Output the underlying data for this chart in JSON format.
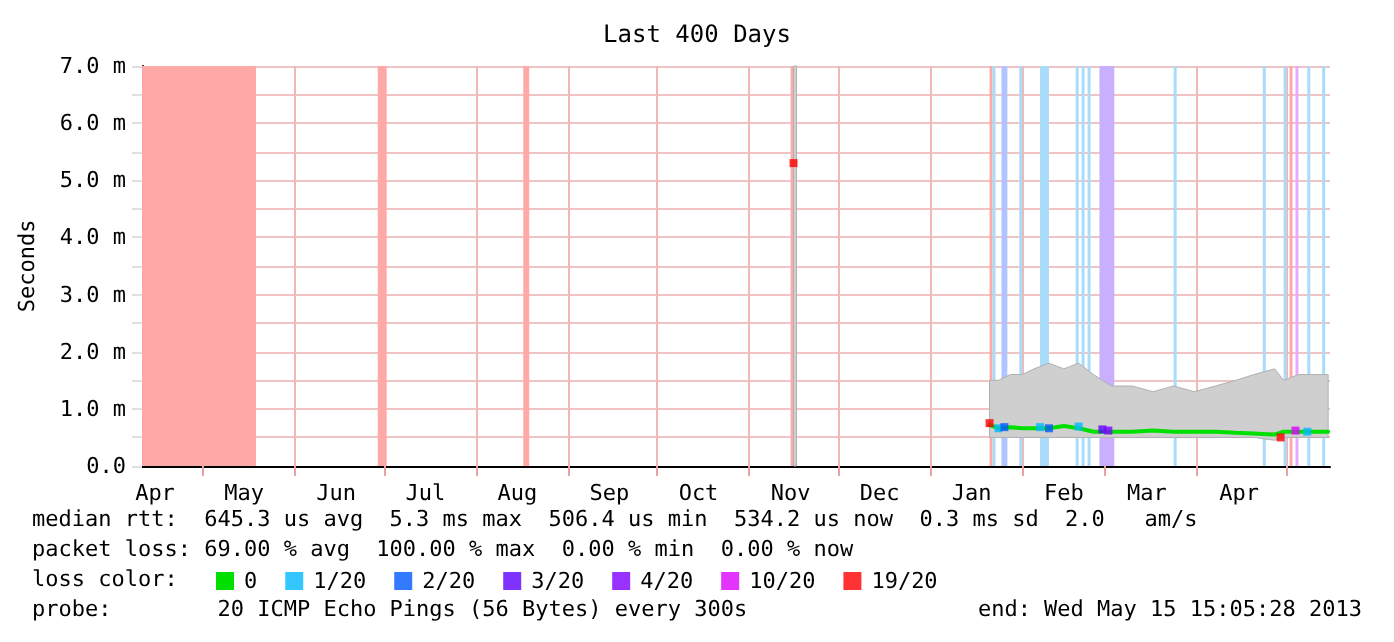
{
  "chart_data": {
    "type": "line",
    "title": "Last 400 Days",
    "ylabel": "Seconds",
    "legend_title": "loss color:",
    "xlim": [
      "2012-04-10T15:05",
      "2013-05-15T15:05"
    ],
    "xticks": [
      {
        "value": "2012-04-15",
        "label": "Apr"
      },
      {
        "value": "2012-05-01",
        "label": null
      },
      {
        "value": "2012-05-15",
        "label": "May"
      },
      {
        "value": "2012-06-01",
        "label": null
      },
      {
        "value": "2012-06-15",
        "label": "Jun"
      },
      {
        "value": "2012-07-01",
        "label": null
      },
      {
        "value": "2012-07-15",
        "label": "Jul"
      },
      {
        "value": "2012-08-01",
        "label": null
      },
      {
        "value": "2012-08-15",
        "label": "Aug"
      },
      {
        "value": "2012-09-01",
        "label": null
      },
      {
        "value": "2012-09-15",
        "label": "Sep"
      },
      {
        "value": "2012-10-01",
        "label": null
      },
      {
        "value": "2012-10-15",
        "label": "Oct"
      },
      {
        "value": "2012-11-01",
        "label": null
      },
      {
        "value": "2012-11-15",
        "label": "Nov"
      },
      {
        "value": "2012-12-01",
        "label": null
      },
      {
        "value": "2012-12-15",
        "label": "Dec"
      },
      {
        "value": "2013-01-01",
        "label": null
      },
      {
        "value": "2013-01-15",
        "label": "Jan"
      },
      {
        "value": "2013-02-01",
        "label": null
      },
      {
        "value": "2013-02-15",
        "label": "Feb"
      },
      {
        "value": "2013-03-01",
        "label": null
      },
      {
        "value": "2013-03-15",
        "label": "Mar"
      },
      {
        "value": "2013-04-01",
        "label": null
      },
      {
        "value": "2013-04-15",
        "label": "Apr"
      },
      {
        "value": "2013-05-01",
        "label": null
      }
    ],
    "ylim": [
      0,
      7
    ],
    "yticks": [
      {
        "value": 0,
        "label": "0.0"
      },
      {
        "value": 0.5,
        "label": null
      },
      {
        "value": 1,
        "label": "1.0 m"
      },
      {
        "value": 1.5,
        "label": null
      },
      {
        "value": 2,
        "label": "2.0 m"
      },
      {
        "value": 2.5,
        "label": null
      },
      {
        "value": 3,
        "label": "3.0 m"
      },
      {
        "value": 3.5,
        "label": null
      },
      {
        "value": 4,
        "label": "4.0 m"
      },
      {
        "value": 4.5,
        "label": null
      },
      {
        "value": 5,
        "label": "5.0 m"
      },
      {
        "value": 5.5,
        "label": null
      },
      {
        "value": 6,
        "label": "6.0 m"
      },
      {
        "value": 6.5,
        "label": null
      },
      {
        "value": 7,
        "label": "7.0 m"
      }
    ],
    "grid": true,
    "legend": "bottom",
    "line_style": "solid",
    "series": [
      {
        "name": "0",
        "color": "#00e000",
        "x": [
          "2012-11-16",
          "2012-11-17",
          "2012-11-18",
          "2013-01-21",
          "2013-01-24",
          "2013-01-28",
          "2013-02-01",
          "2013-02-05",
          "2013-02-10",
          "2013-02-15",
          "2013-02-20",
          "2013-02-25",
          "2013-03-03",
          "2013-03-10",
          "2013-03-17",
          "2013-03-24",
          "2013-03-31",
          "2013-04-07",
          "2013-04-14",
          "2013-04-20",
          "2013-04-27",
          "2013-04-30",
          "2013-05-05",
          "2013-05-10",
          "2013-05-15"
        ],
        "values": [
          null,
          null,
          null,
          0.72,
          0.66,
          0.68,
          0.66,
          0.66,
          0.66,
          0.7,
          0.66,
          0.6,
          0.6,
          0.6,
          0.62,
          0.6,
          0.6,
          0.6,
          0.58,
          0.57,
          0.55,
          0.6,
          0.6,
          0.6,
          0.6
        ],
        "lower": [
          0,
          0,
          null,
          0.5,
          0.5,
          0.5,
          0.5,
          0.5,
          0.5,
          0.5,
          0.5,
          0.5,
          0.5,
          0.5,
          0.5,
          0.5,
          0.5,
          0.5,
          0.5,
          0.5,
          0.45,
          0.5,
          0.5,
          0.5,
          0.5
        ],
        "upper": [
          7,
          7,
          null,
          1.5,
          1.5,
          1.6,
          1.6,
          1.7,
          1.8,
          1.7,
          1.8,
          1.6,
          1.4,
          1.4,
          1.3,
          1.4,
          1.3,
          1.4,
          1.5,
          1.6,
          1.7,
          1.5,
          1.6,
          1.6,
          1.6
        ]
      },
      {
        "name": "1/20",
        "type": "scatter",
        "color": "#00b8ff",
        "x": [
          "2013-01-24",
          "2013-02-07",
          "2013-02-20",
          "2013-05-08"
        ],
        "values": [
          0.66,
          0.68,
          0.69,
          0.6
        ]
      },
      {
        "name": "2/20",
        "type": "scatter",
        "color": "#0059ff",
        "x": [
          "2013-01-26",
          "2013-02-10"
        ],
        "values": [
          0.68,
          0.66
        ]
      },
      {
        "name": "3/20",
        "type": "scatter",
        "color": "#5e00ff",
        "x": [
          "2013-02-28"
        ],
        "values": [
          0.64
        ]
      },
      {
        "name": "4/20",
        "type": "scatter",
        "color": "#7e00ff",
        "x": [
          "2013-03-02"
        ],
        "values": [
          0.62
        ]
      },
      {
        "name": "10/20",
        "type": "scatter",
        "color": "#dd00ff",
        "x": [
          "2013-05-04"
        ],
        "values": [
          0.62
        ]
      },
      {
        "name": "19/20",
        "type": "scatter",
        "color": "#ff0000",
        "x": [
          "2012-11-16",
          "2013-01-21",
          "2013-04-29"
        ],
        "values": [
          5.3,
          0.75,
          0.5
        ]
      }
    ],
    "bands": [
      {
        "axis": "x",
        "from": "2012-04-10T15:05",
        "to": "2012-05-19",
        "color": "#ffa8a8"
      },
      {
        "axis": "x",
        "from": "2012-06-29",
        "to": "2012-07-02",
        "color": "#ffa8a8"
      },
      {
        "axis": "x",
        "from": "2012-08-17",
        "to": "2012-08-19",
        "color": "#ffa8a8"
      },
      {
        "axis": "x",
        "from": "2012-11-15",
        "to": "2012-11-17",
        "color": "#ffa8a8"
      },
      {
        "axis": "x",
        "from": "2013-01-21",
        "to": "2013-01-22",
        "color": "#ffa8a8"
      },
      {
        "axis": "x",
        "from": "2013-01-22",
        "to": "2013-01-23",
        "color": "#a8dcf8"
      },
      {
        "axis": "x",
        "from": "2013-01-25",
        "to": "2013-01-27",
        "color": "#b0c4ff"
      },
      {
        "axis": "x",
        "from": "2013-01-31",
        "to": "2013-02-01",
        "color": "#a8dcf8"
      },
      {
        "axis": "x",
        "from": "2013-02-07",
        "to": "2013-02-10",
        "color": "#a8dcf8"
      },
      {
        "axis": "x",
        "from": "2013-02-19",
        "to": "2013-02-20",
        "color": "#a8dcf8"
      },
      {
        "axis": "x",
        "from": "2013-02-21",
        "to": "2013-02-22",
        "color": "#a8dcf8"
      },
      {
        "axis": "x",
        "from": "2013-02-23",
        "to": "2013-02-24",
        "color": "#a8dcf8"
      },
      {
        "axis": "x",
        "from": "2013-02-27",
        "to": "2013-03-04",
        "color": "#c8b0ff"
      },
      {
        "axis": "x",
        "from": "2013-03-24",
        "to": "2013-03-25",
        "color": "#a8dcf8"
      },
      {
        "axis": "x",
        "from": "2013-04-23",
        "to": "2013-04-24",
        "color": "#a8dcf8"
      },
      {
        "axis": "x",
        "from": "2013-04-30",
        "to": "2013-05-01",
        "color": "#a8dcf8"
      },
      {
        "axis": "x",
        "from": "2013-05-02",
        "to": "2013-05-03",
        "color": "#ffa8a8"
      },
      {
        "axis": "x",
        "from": "2013-05-04",
        "to": "2013-05-05",
        "color": "#e8a8ff"
      },
      {
        "axis": "x",
        "from": "2013-05-08",
        "to": "2013-05-09",
        "color": "#a8dcf8"
      },
      {
        "axis": "x",
        "from": "2013-05-13",
        "to": "2013-05-14",
        "color": "#a8dcf8"
      }
    ],
    "annotations": [
      "median rtt:  645.3 us avg  5.3 ms max  506.4 us min  534.2 us now  0.3 ms sd  2.0   am/s",
      "packet loss: 69.00 % avg  100.00 % max  0.00 % min  0.00 % now",
      "probe:        20 ICMP Echo Pings (56 Bytes) every 300s",
      "end: Wed May 15 15:05:28 2013"
    ]
  }
}
